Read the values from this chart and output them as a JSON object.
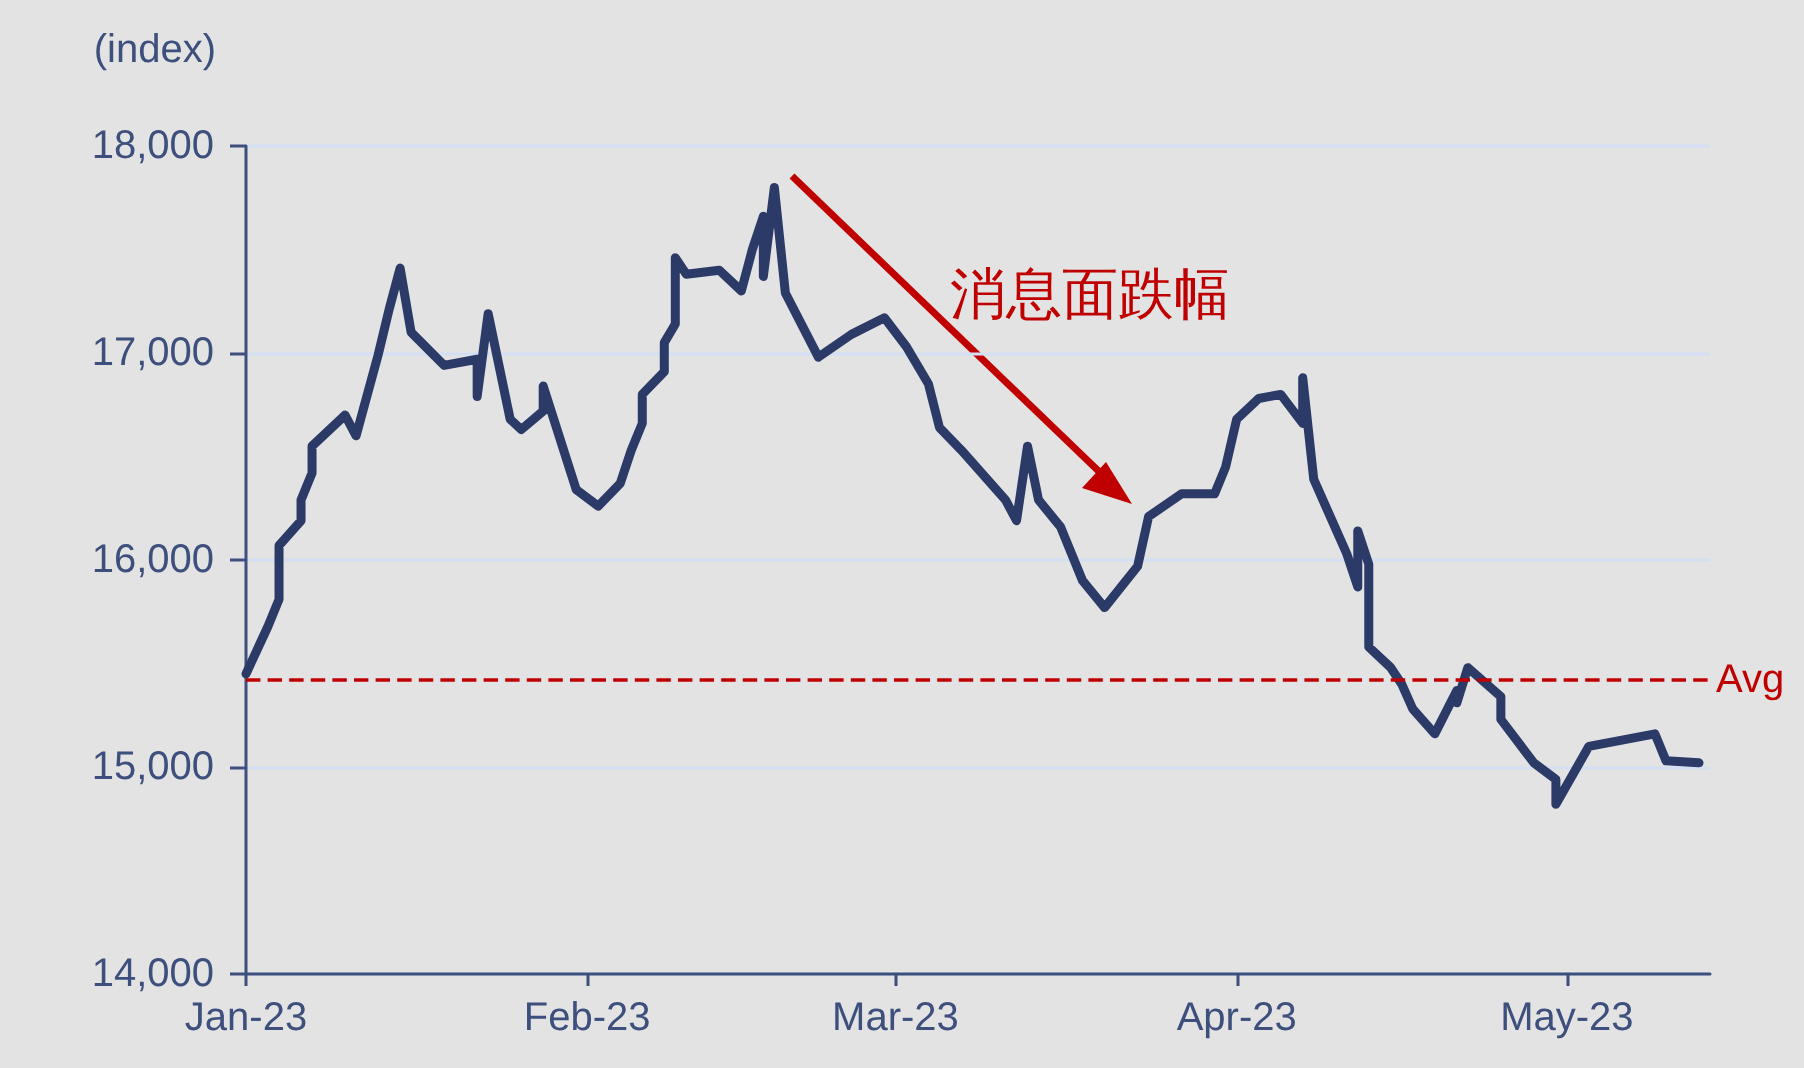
{
  "chart_data": {
    "type": "line",
    "ylabel": "(index)",
    "annotations": [
      "消息面跌幅"
    ],
    "x": [
      "2023-01-01",
      "2023-01-03",
      "2023-01-04",
      "2023-01-04",
      "2023-01-06",
      "2023-01-06",
      "2023-01-07",
      "2023-01-07",
      "2023-01-10",
      "2023-01-11",
      "2023-01-13",
      "2023-01-14",
      "2023-01-15",
      "2023-01-16",
      "2023-01-19",
      "2023-01-22",
      "2023-01-22",
      "2023-01-23",
      "2023-01-25",
      "2023-01-26",
      "2023-01-28",
      "2023-01-28",
      "2023-01-31",
      "2023-02-02",
      "2023-02-04",
      "2023-02-05",
      "2023-02-06",
      "2023-02-06",
      "2023-02-08",
      "2023-02-08",
      "2023-02-09",
      "2023-02-09",
      "2023-02-10",
      "2023-02-13",
      "2023-02-15",
      "2023-02-16",
      "2023-02-17",
      "2023-02-17",
      "2023-02-18",
      "2023-02-19",
      "2023-02-22",
      "2023-02-25",
      "2023-02-28",
      "2023-03-02",
      "2023-03-04",
      "2023-03-05",
      "2023-03-07",
      "2023-03-11",
      "2023-03-12",
      "2023-03-13",
      "2023-03-14",
      "2023-03-16",
      "2023-03-18",
      "2023-03-20",
      "2023-03-23",
      "2023-03-24",
      "2023-03-27",
      "2023-03-30",
      "2023-03-31",
      "2023-04-01",
      "2023-04-03",
      "2023-04-05",
      "2023-04-07",
      "2023-04-07",
      "2023-04-08",
      "2023-04-11",
      "2023-04-12",
      "2023-04-12",
      "2023-04-13",
      "2023-04-13",
      "2023-04-15",
      "2023-04-16",
      "2023-04-17",
      "2023-04-19",
      "2023-04-21",
      "2023-04-21",
      "2023-04-22",
      "2023-04-25",
      "2023-04-25",
      "2023-04-28",
      "2023-04-30",
      "2023-04-30",
      "2023-05-03",
      "2023-05-06",
      "2023-05-09",
      "2023-05-10",
      "2023-05-13"
    ],
    "series": [
      {
        "color": "#2b3a67",
        "values": [
          15450,
          15680,
          15810,
          16070,
          16190,
          16290,
          16420,
          16550,
          16700,
          16600,
          16990,
          17210,
          17410,
          17100,
          16940,
          16970,
          16790,
          17190,
          16680,
          16630,
          16720,
          16840,
          16340,
          16260,
          16370,
          16530,
          16660,
          16800,
          16910,
          17050,
          17140,
          17460,
          17380,
          17400,
          17300,
          17500,
          17660,
          17370,
          17800,
          17290,
          16980,
          17090,
          17170,
          17030,
          16850,
          16640,
          16530,
          16290,
          16190,
          16550,
          16290,
          16160,
          15900,
          15770,
          15970,
          16210,
          16320,
          16320,
          16450,
          16680,
          16780,
          16800,
          16660,
          16880,
          16390,
          16030,
          15870,
          16140,
          15980,
          15580,
          15480,
          15400,
          15280,
          15160,
          15370,
          15310,
          15480,
          15340,
          15230,
          15020,
          14940,
          14820,
          15100,
          15130,
          15160,
          15030,
          15020
        ]
      }
    ],
    "xlim": [
      "2023-01-01",
      "2023-05-14"
    ],
    "xticks": [
      {
        "value": "2023-01-01",
        "label": "Jan-23"
      },
      {
        "value": "2023-02-01",
        "label": "Feb-23"
      },
      {
        "value": "2023-03-01",
        "label": "Mar-23"
      },
      {
        "value": "2023-04-01",
        "label": "Apr-23"
      },
      {
        "value": "2023-05-01",
        "label": "May-23"
      }
    ],
    "ylim": [
      14000,
      18000
    ],
    "yticks": [
      {
        "value": 14000,
        "label": "14,000"
      },
      {
        "value": 15000,
        "label": "15,000"
      },
      {
        "value": 16000,
        "label": "16,000"
      },
      {
        "value": 17000,
        "label": "17,000"
      },
      {
        "value": 18000,
        "label": "18,000"
      }
    ],
    "ref_lines": [
      {
        "axis": "y",
        "value": 15420,
        "label": "Avg",
        "color": "#c00000",
        "line_style": "dashed"
      }
    ],
    "grid": "y",
    "marker": "none",
    "line_style": "solid"
  }
}
